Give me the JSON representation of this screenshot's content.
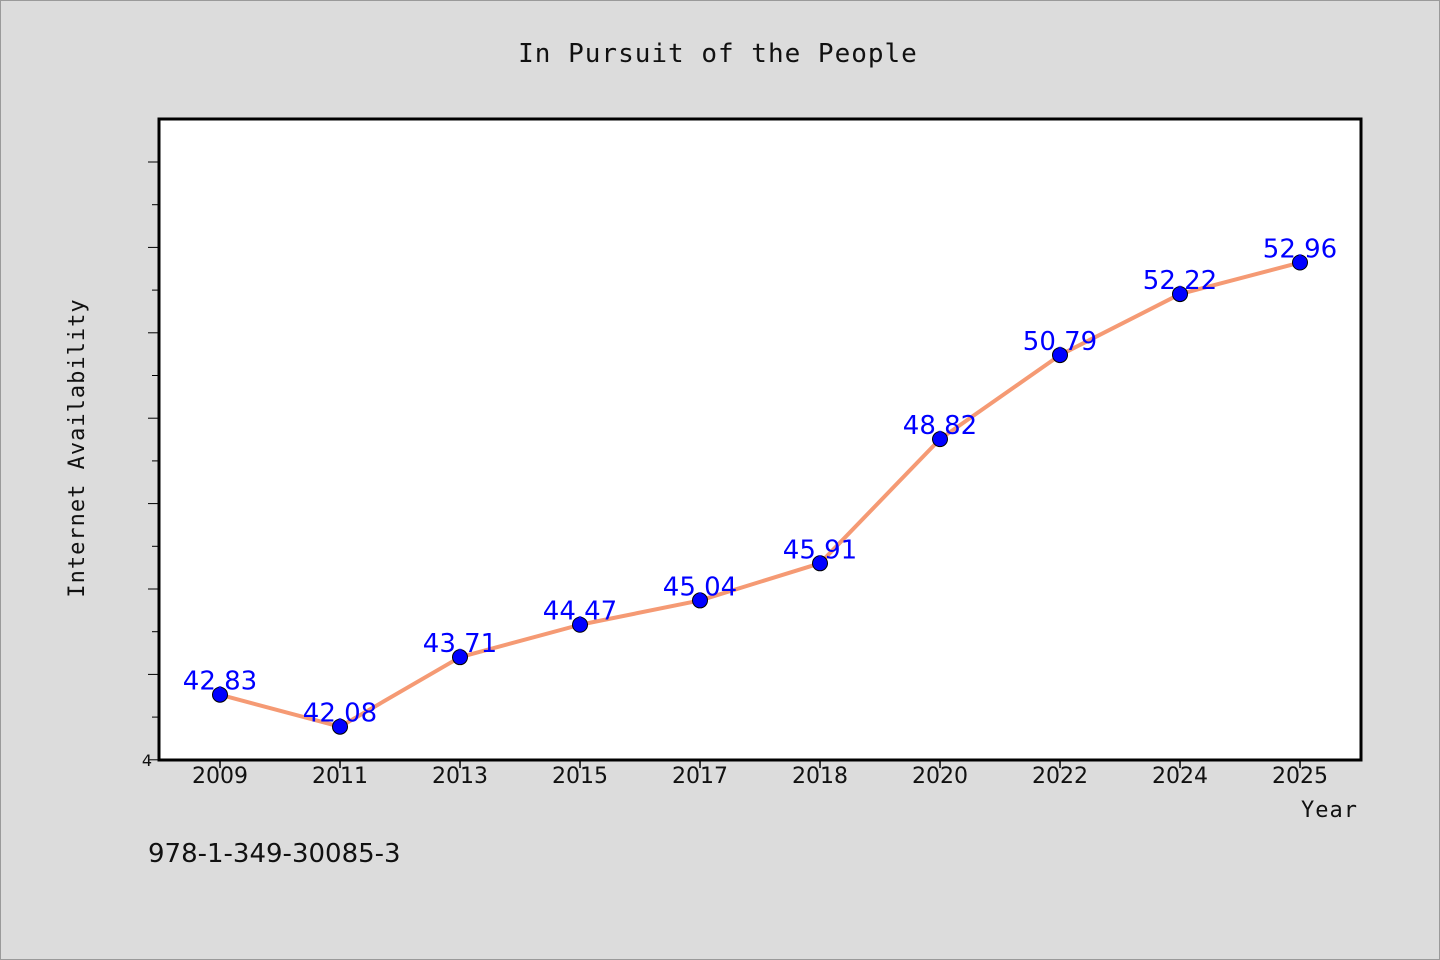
{
  "chart_data": {
    "type": "line",
    "title": "In Pursuit of the People",
    "xlabel": "Year",
    "ylabel": "Internet Availability",
    "categories": [
      "2009",
      "2011",
      "2013",
      "2015",
      "2017",
      "2018",
      "2020",
      "2022",
      "2024",
      "2025"
    ],
    "series": [
      {
        "values": [
          42.83,
          42.08,
          43.71,
          44.47,
          45.04,
          45.91,
          48.82,
          50.79,
          52.22,
          52.96
        ]
      }
    ],
    "data_labels": [
      "42.83",
      "42.08",
      "43.71",
      "44.47",
      "45.04",
      "45.91",
      "48.82",
      "50.79",
      "52.22",
      "52.96"
    ],
    "y_tick_labels": [
      "4"
    ],
    "ylim": [
      41.3,
      56.3
    ],
    "grid": false,
    "line_color": "#f59a74",
    "marker_color": "#0000ff",
    "label_color": "#0000ff"
  },
  "footer": {
    "isbn": "978-1-349-30085-3"
  }
}
